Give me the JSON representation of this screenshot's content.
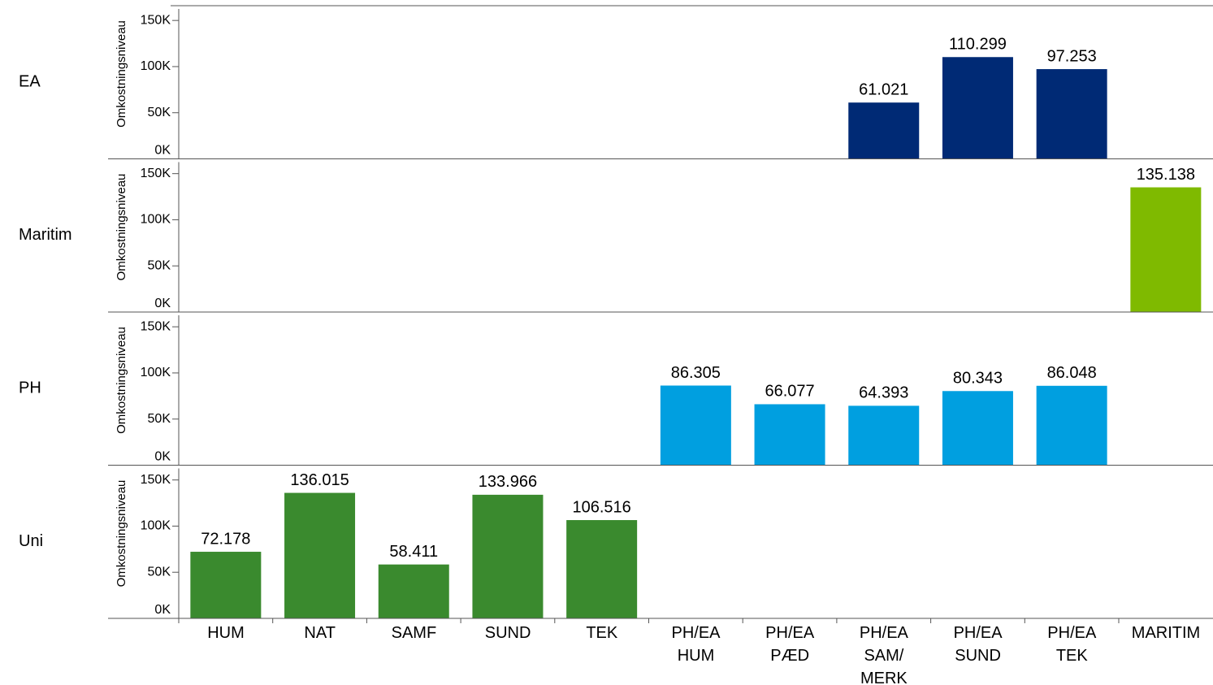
{
  "chart_data": {
    "type": "bar",
    "y_label": "Omkostningsniveau",
    "categories": [
      "HUM",
      "NAT",
      "SAMF",
      "SUND",
      "TEK",
      "PH/EA\nHUM",
      "PH/EA\nPÆD",
      "PH/EA\nSAM/\nMERK",
      "PH/EA\nSUND",
      "PH/EA\nTEK",
      "MARITIM"
    ],
    "ylim": [
      0,
      166000
    ],
    "yticks": [
      {
        "value": 0,
        "label": "0K"
      },
      {
        "value": 50000,
        "label": "50K"
      },
      {
        "value": 100000,
        "label": "100K"
      },
      {
        "value": 150000,
        "label": "150K"
      }
    ],
    "series": [
      {
        "name": "EA",
        "color": "#002a75",
        "values": [
          null,
          null,
          null,
          null,
          null,
          null,
          null,
          61021,
          110299,
          97253,
          null
        ],
        "value_labels": [
          null,
          null,
          null,
          null,
          null,
          null,
          null,
          "61.021",
          "110.299",
          "97.253",
          null
        ]
      },
      {
        "name": "Maritim",
        "color": "#7fba00",
        "values": [
          null,
          null,
          null,
          null,
          null,
          null,
          null,
          null,
          null,
          null,
          135138
        ],
        "value_labels": [
          null,
          null,
          null,
          null,
          null,
          null,
          null,
          null,
          null,
          null,
          "135.138"
        ]
      },
      {
        "name": "PH",
        "color": "#009fe0",
        "values": [
          null,
          null,
          null,
          null,
          null,
          86305,
          66077,
          64393,
          80343,
          86048,
          null
        ],
        "value_labels": [
          null,
          null,
          null,
          null,
          null,
          "86.305",
          "66.077",
          "64.393",
          "80.343",
          "86.048",
          null
        ]
      },
      {
        "name": "Uni",
        "color": "#3a8a2e",
        "values": [
          72178,
          136015,
          58411,
          133966,
          106516,
          null,
          null,
          null,
          null,
          null,
          null
        ],
        "value_labels": [
          "72.178",
          "136.015",
          "58.411",
          "133.966",
          "106.516",
          null,
          null,
          null,
          null,
          null,
          null
        ]
      }
    ]
  }
}
